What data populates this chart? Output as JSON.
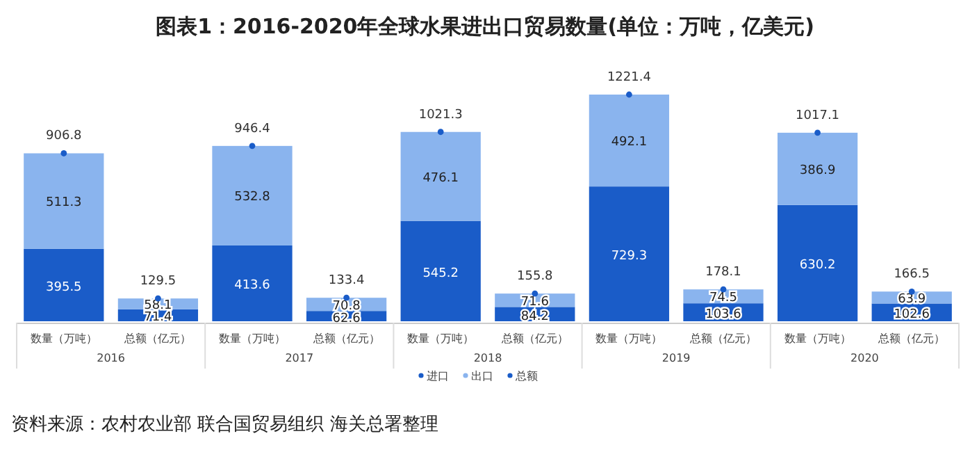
{
  "chart_data": {
    "type": "bar",
    "stacked": true,
    "title": "图表1：2016-2020年全球水果进出口贸易数量(单位：万吨，亿美元)",
    "categories": [
      "数量（万吨）",
      "总额（亿元）",
      "数量（万吨）",
      "总额（亿元）",
      "数量（万吨）",
      "总额（亿元）",
      "数量（万吨）",
      "总额（亿元）",
      "数量（万吨）",
      "总额（亿元）"
    ],
    "series": [
      {
        "name": "进口",
        "color": "#1a5cc8",
        "values": [
          395.5,
          71.4,
          413.6,
          62.6,
          545.2,
          84.2,
          729.3,
          103.6,
          630.2,
          102.6
        ]
      },
      {
        "name": "出口",
        "color": "#8ab4ee",
        "values": [
          511.3,
          58.1,
          532.8,
          70.8,
          476.1,
          71.6,
          492.1,
          74.5,
          386.9,
          63.9
        ]
      },
      {
        "name": "总额",
        "type": "scatter",
        "marker": "circle",
        "color": "#1a5cc8",
        "values": [
          906.8,
          129.5,
          946.4,
          133.4,
          1021.3,
          155.8,
          1221.4,
          178.1,
          1017.1,
          166.5
        ]
      }
    ],
    "data_labels": true,
    "legend": "bottom",
    "annotations": [
      "2016",
      "2017",
      "2018",
      "2019",
      "2020",
      "资料来源：农村农业部 联合国贸易组织 海关总署整理"
    ]
  }
}
